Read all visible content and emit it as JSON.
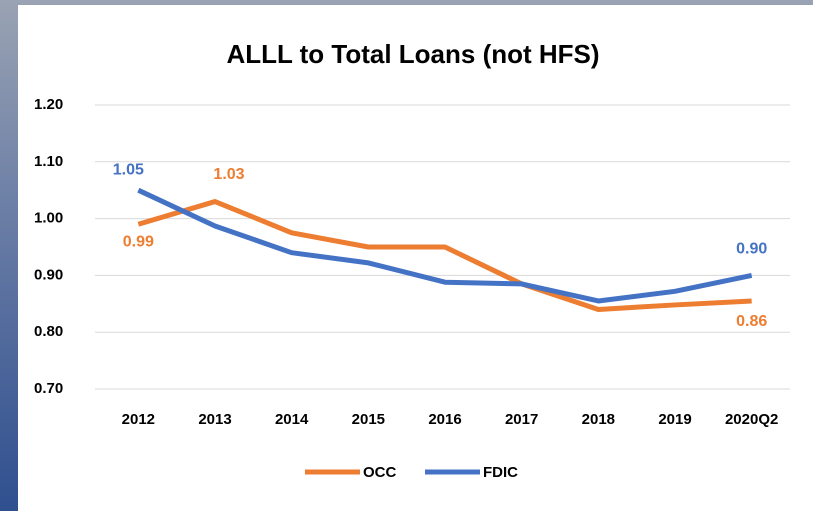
{
  "chart_data": {
    "type": "line",
    "title": "ALLL to Total Loans (not HFS)",
    "categories": [
      "2012",
      "2013",
      "2014",
      "2015",
      "2016",
      "2017",
      "2018",
      "2019",
      "2020Q2"
    ],
    "series": [
      {
        "name": "OCC",
        "color": "#ED7D31",
        "values": [
          0.99,
          1.03,
          0.975,
          0.95,
          0.95,
          0.885,
          0.84,
          0.848,
          0.855
        ],
        "value_labels": [
          "0.99",
          "1.03",
          null,
          null,
          null,
          null,
          null,
          null,
          "0.86"
        ]
      },
      {
        "name": "FDIC",
        "color": "#4472C4",
        "values": [
          1.05,
          0.987,
          0.94,
          0.922,
          0.888,
          0.885,
          0.855,
          0.872,
          0.9
        ],
        "value_labels": [
          "1.05",
          null,
          null,
          null,
          null,
          null,
          null,
          null,
          "0.90"
        ]
      }
    ],
    "ylim": [
      0.7,
      1.2
    ],
    "yticks": [
      {
        "value": 0.7,
        "label": "0.70"
      },
      {
        "value": 0.8,
        "label": "0.80"
      },
      {
        "value": 0.9,
        "label": "0.90"
      },
      {
        "value": 1.0,
        "label": "1.00"
      },
      {
        "value": 1.1,
        "label": "1.10"
      },
      {
        "value": 1.2,
        "label": "1.20"
      }
    ],
    "grid": true,
    "legend": "bottom"
  }
}
